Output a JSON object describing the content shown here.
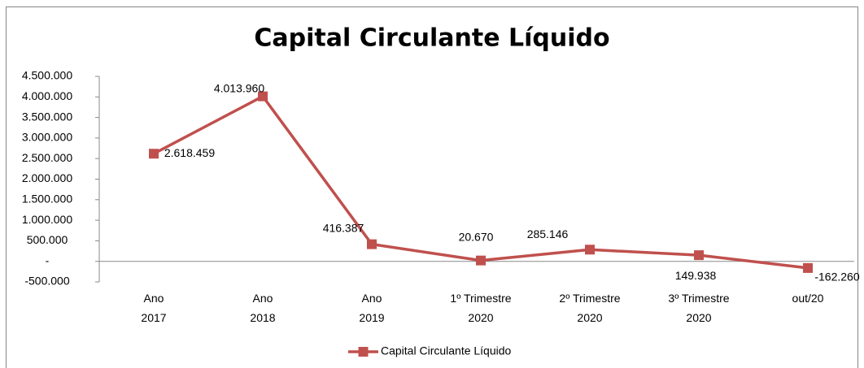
{
  "chart_data": {
    "type": "line",
    "title": "Capital Circulante Líquido",
    "categories": [
      "Ano 2017",
      "Ano 2018",
      "Ano 2019",
      "1º Trimestre 2020",
      "2º Trimestre 2020",
      "3º Trimestre 2020",
      "out/20"
    ],
    "series": [
      {
        "name": "Capital Circulante Líquido",
        "color": "#c0504d",
        "values": [
          2618459,
          4013960,
          416387,
          20670,
          285146,
          149938,
          -162260
        ],
        "value_labels": [
          "2.618.459",
          "4.013.960",
          "416.387",
          "20.670",
          "285.146",
          "149.938",
          "-162.260"
        ]
      }
    ],
    "ylim": [
      -500000,
      4500000
    ],
    "yticks": [
      {
        "value": -500000,
        "label": "-500.000"
      },
      {
        "value": 0,
        "label": "-"
      },
      {
        "value": 500000,
        "label": "500.000"
      },
      {
        "value": 1000000,
        "label": "1.000.000"
      },
      {
        "value": 1500000,
        "label": "1.500.000"
      },
      {
        "value": 2000000,
        "label": "2.000.000"
      },
      {
        "value": 2500000,
        "label": "2.500.000"
      },
      {
        "value": 3000000,
        "label": "3.000.000"
      },
      {
        "value": 3500000,
        "label": "3.500.000"
      },
      {
        "value": 4000000,
        "label": "4.000.000"
      },
      {
        "value": 4500000,
        "label": "4.500.000"
      }
    ],
    "grid": false,
    "legend": "bottom"
  }
}
